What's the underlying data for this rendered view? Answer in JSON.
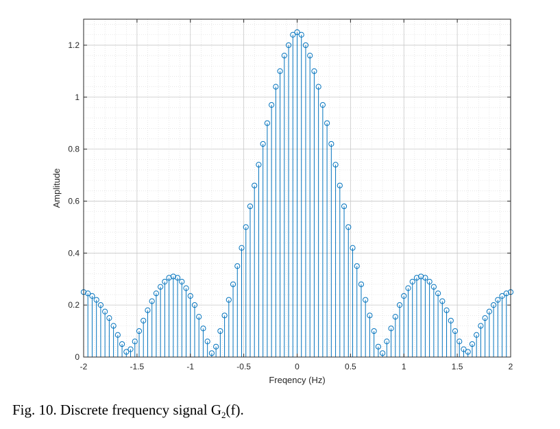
{
  "figure": {
    "caption_prefix": "Fig.  10. Discrete frequency signal G",
    "caption_sub": "2",
    "caption_suffix": "(f)."
  },
  "chart_data": {
    "type": "stem",
    "title": "",
    "xlabel": "Freqency (Hz)",
    "ylabel": "Amplitude",
    "xlim": [
      -2,
      2
    ],
    "ylim": [
      0,
      1.3
    ],
    "xticks": [
      -2,
      -1.5,
      -1,
      -0.5,
      0,
      0.5,
      1,
      1.5,
      2
    ],
    "xtick_labels": [
      "-2",
      "-1.5",
      "-1",
      "-0.5",
      "0",
      "0.5",
      "1",
      "1.5",
      "2"
    ],
    "yticks": [
      0,
      0.2,
      0.4,
      0.6,
      0.8,
      1,
      1.2
    ],
    "ytick_labels": [
      "0",
      "0.2",
      "0.4",
      "0.6",
      "0.8",
      "1",
      "1.2"
    ],
    "grid": "major-and-minor",
    "series_color": "#0072BD",
    "x": [
      -2.0,
      -1.96,
      -1.92,
      -1.88,
      -1.84,
      -1.8,
      -1.76,
      -1.72,
      -1.68,
      -1.64,
      -1.6,
      -1.56,
      -1.52,
      -1.48,
      -1.44,
      -1.4,
      -1.36,
      -1.32,
      -1.28,
      -1.24,
      -1.2,
      -1.16,
      -1.12,
      -1.08,
      -1.04,
      -1.0,
      -0.96,
      -0.92,
      -0.88,
      -0.84,
      -0.8,
      -0.76,
      -0.72,
      -0.68,
      -0.64,
      -0.6,
      -0.56,
      -0.52,
      -0.48,
      -0.44,
      -0.4,
      -0.36,
      -0.32,
      -0.28,
      -0.24,
      -0.2,
      -0.16,
      -0.12,
      -0.08,
      -0.04,
      0.0,
      0.04,
      0.08,
      0.12,
      0.16,
      0.2,
      0.24,
      0.28,
      0.32,
      0.36,
      0.4,
      0.44,
      0.48,
      0.52,
      0.56,
      0.6,
      0.64,
      0.68,
      0.72,
      0.76,
      0.8,
      0.84,
      0.88,
      0.92,
      0.96,
      1.0,
      1.04,
      1.08,
      1.12,
      1.16,
      1.2,
      1.24,
      1.28,
      1.32,
      1.36,
      1.4,
      1.44,
      1.48,
      1.52,
      1.56,
      1.6,
      1.64,
      1.68,
      1.72,
      1.76,
      1.8,
      1.84,
      1.88,
      1.92,
      1.96,
      2.0
    ],
    "y": [
      0.25,
      0.245,
      0.235,
      0.22,
      0.2,
      0.175,
      0.15,
      0.12,
      0.085,
      0.05,
      0.02,
      0.03,
      0.06,
      0.1,
      0.14,
      0.18,
      0.215,
      0.245,
      0.27,
      0.29,
      0.305,
      0.31,
      0.305,
      0.29,
      0.265,
      0.235,
      0.2,
      0.155,
      0.11,
      0.06,
      0.015,
      0.04,
      0.1,
      0.16,
      0.22,
      0.28,
      0.35,
      0.42,
      0.5,
      0.58,
      0.66,
      0.74,
      0.82,
      0.9,
      0.97,
      1.04,
      1.1,
      1.16,
      1.2,
      1.24,
      1.25,
      1.24,
      1.2,
      1.16,
      1.1,
      1.04,
      0.97,
      0.9,
      0.82,
      0.74,
      0.66,
      0.58,
      0.5,
      0.42,
      0.35,
      0.28,
      0.22,
      0.16,
      0.1,
      0.04,
      0.015,
      0.06,
      0.11,
      0.155,
      0.2,
      0.235,
      0.265,
      0.29,
      0.305,
      0.31,
      0.305,
      0.29,
      0.27,
      0.245,
      0.215,
      0.18,
      0.14,
      0.1,
      0.06,
      0.03,
      0.02,
      0.05,
      0.085,
      0.12,
      0.15,
      0.175,
      0.2,
      0.22,
      0.235,
      0.245,
      0.25
    ]
  }
}
